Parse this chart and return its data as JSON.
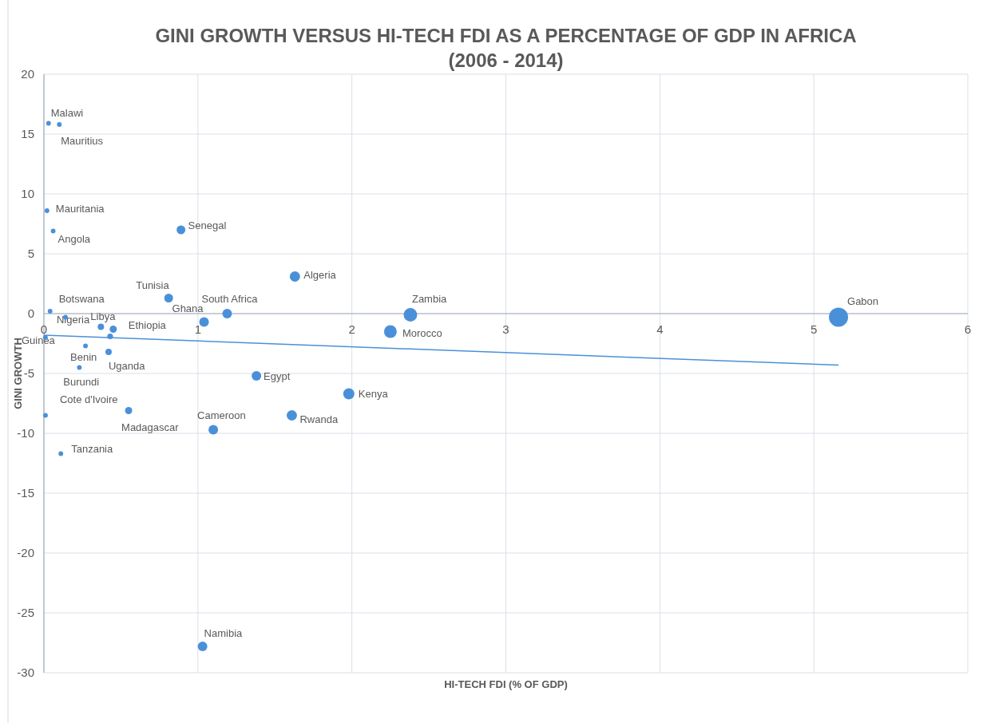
{
  "chart_data": {
    "type": "bubble",
    "title": "GINI GROWTH VERSUS HI-TECH FDI AS A PERCENTAGE OF GDP IN AFRICA\n(2006 - 2014)",
    "xlabel": "HI-TECH FDI (% OF GDP)",
    "ylabel": "GINI GROWTH",
    "xlim": [
      0,
      6
    ],
    "xticks": [
      0,
      1,
      2,
      3,
      4,
      5,
      6
    ],
    "ylim": [
      -30,
      20
    ],
    "yticks": [
      -30,
      -25,
      -20,
      -15,
      -10,
      -5,
      0,
      5,
      10,
      15,
      20
    ],
    "grid": true,
    "series": [
      {
        "color": "#4a90d9",
        "x": [
          0.03,
          0.1,
          0.02,
          0.06,
          0.89,
          1.63,
          0.81,
          0.04,
          0.14,
          0.37,
          0.45,
          0.43,
          0.27,
          0.42,
          0.23,
          0.01,
          0.55,
          0.11,
          1.04,
          1.19,
          2.38,
          2.25,
          1.38,
          1.98,
          1.61,
          1.1,
          5.16,
          1.03,
          0.01
        ],
        "values": [
          15.9,
          15.8,
          8.6,
          6.9,
          7.0,
          3.1,
          1.3,
          0.2,
          -0.3,
          -1.1,
          -1.3,
          -1.9,
          -2.7,
          -3.2,
          -4.5,
          -8.5,
          -8.1,
          -11.7,
          -0.7,
          0.0,
          -0.1,
          -1.5,
          -5.2,
          -6.7,
          -8.5,
          -9.7,
          -0.3,
          -27.8,
          -2.0
        ],
        "sizes": [
          0.06,
          0.06,
          0.06,
          0.06,
          0.21,
          0.29,
          0.21,
          0.06,
          0.06,
          0.11,
          0.14,
          0.09,
          0.06,
          0.11,
          0.06,
          0.06,
          0.14,
          0.06,
          0.25,
          0.25,
          0.5,
          0.44,
          0.25,
          0.34,
          0.29,
          0.25,
          1,
          0.25,
          0.06
        ]
      },
      {
        "type": "line",
        "color": "#4a90d9",
        "x": [
          0,
          5.16
        ],
        "values": [
          -1.8,
          -4.3
        ]
      }
    ],
    "annotations": [
      {
        "text": "Malawi",
        "x": 0.03,
        "y": 15.9
      },
      {
        "text": "Mauritius",
        "x": 0.1,
        "y": 15.8
      },
      {
        "text": "Mauritania",
        "x": 0.02,
        "y": 8.6
      },
      {
        "text": "Angola",
        "x": 0.06,
        "y": 6.9
      },
      {
        "text": "Senegal",
        "x": 0.89,
        "y": 7.0
      },
      {
        "text": "Algeria",
        "x": 1.63,
        "y": 3.1
      },
      {
        "text": "Tunisia",
        "x": 0.81,
        "y": 1.3
      },
      {
        "text": "Botswana",
        "x": 0.04,
        "y": 0.2
      },
      {
        "text": "Nigeria",
        "x": 0.14,
        "y": -0.3
      },
      {
        "text": "Libya",
        "x": 0.37,
        "y": -1.1
      },
      {
        "text": "Ethiopia",
        "x": 0.45,
        "y": -1.3
      },
      {
        "text": "Guinea",
        "x": 0.01,
        "y": -2.0
      },
      {
        "text": "Benin",
        "x": 0.27,
        "y": -2.7
      },
      {
        "text": "Uganda",
        "x": 0.42,
        "y": -3.2
      },
      {
        "text": "Burundi",
        "x": 0.23,
        "y": -4.5
      },
      {
        "text": "Cote d'Ivoire",
        "x": 0.01,
        "y": -8.5
      },
      {
        "text": "Madagascar",
        "x": 0.55,
        "y": -8.1
      },
      {
        "text": "Tanzania",
        "x": 0.11,
        "y": -11.7
      },
      {
        "text": "Ghana",
        "x": 1.04,
        "y": -0.7
      },
      {
        "text": "South Africa",
        "x": 1.19,
        "y": 0.0
      },
      {
        "text": "Zambia",
        "x": 2.38,
        "y": -0.1
      },
      {
        "text": "Morocco",
        "x": 2.25,
        "y": -1.5
      },
      {
        "text": "Egypt",
        "x": 1.38,
        "y": -5.2
      },
      {
        "text": "Kenya",
        "x": 1.98,
        "y": -6.7
      },
      {
        "text": "Rwanda",
        "x": 1.61,
        "y": -8.5
      },
      {
        "text": "Cameroon",
        "x": 1.1,
        "y": -9.7
      },
      {
        "text": "Gabon",
        "x": 5.16,
        "y": -0.3
      },
      {
        "text": "Namibia",
        "x": 1.03,
        "y": -27.8
      }
    ]
  }
}
